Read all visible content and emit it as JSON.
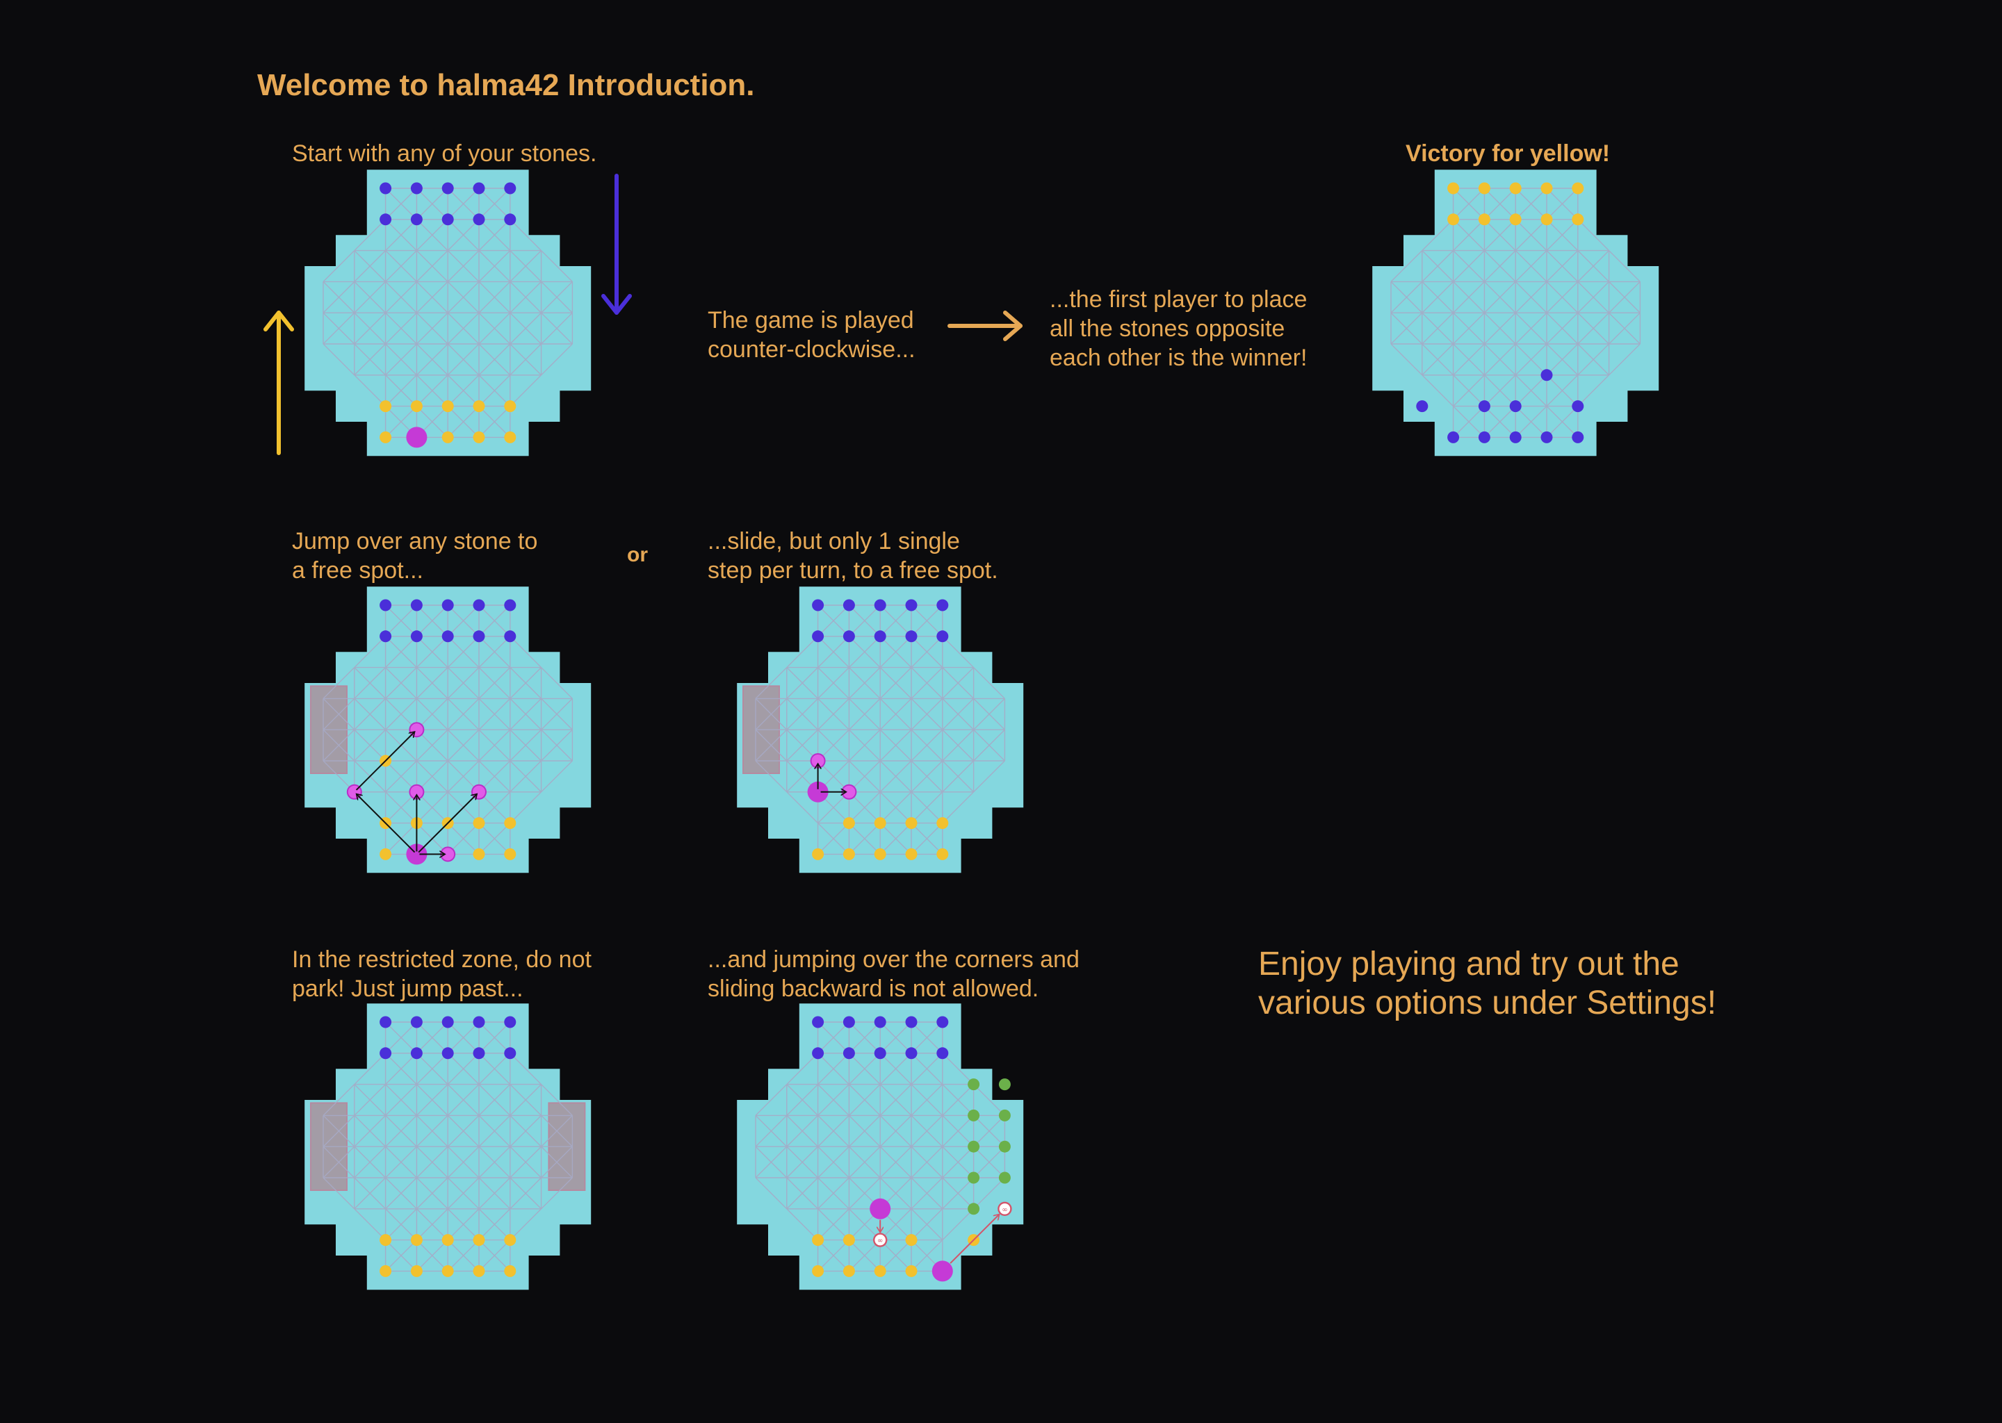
{
  "title": "Welcome to halma42 Introduction.",
  "captions": {
    "start": "Start with any of your stones.",
    "played_1": "The game is played",
    "played_2": "counter-clockwise...",
    "first_1": "...the first player to place",
    "first_2": "all the stones opposite",
    "first_3": "each other is the winner!",
    "victory": "Victory for yellow!",
    "jump_1": "Jump over any stone to",
    "jump_2": "a free spot...",
    "or": "or",
    "slide_1": "...slide, but only 1 single",
    "slide_2": "step per turn, to a free spot.",
    "restricted_1": "In the restricted zone, do not",
    "restricted_2": "park! Just jump past...",
    "corners_1": "...and jumping over the corners and",
    "corners_2": "sliding backward is not allowed.",
    "enjoy_1": "Enjoy playing and try out the",
    "enjoy_2": "various options under Settings!"
  },
  "colors": {
    "text": "#e6a855",
    "board": "#84d7df",
    "grid": "#a7aac6",
    "blue": "#4a2fd9",
    "yellow": "#f2c12e",
    "magenta": "#c53ad6",
    "green": "#6bb04a",
    "zone": "#a39ca6",
    "arrow_yellow": "#f2c12e",
    "arrow_blue": "#4a2fd9",
    "arrow_orange": "#e6a855"
  },
  "boards": [
    {
      "id": "start",
      "stones": [
        {
          "c": 2,
          "r": 0,
          "p": "blue"
        },
        {
          "c": 3,
          "r": 0,
          "p": "blue"
        },
        {
          "c": 4,
          "r": 0,
          "p": "blue"
        },
        {
          "c": 5,
          "r": 0,
          "p": "blue"
        },
        {
          "c": 6,
          "r": 0,
          "p": "blue"
        },
        {
          "c": 2,
          "r": 1,
          "p": "blue"
        },
        {
          "c": 3,
          "r": 1,
          "p": "blue"
        },
        {
          "c": 4,
          "r": 1,
          "p": "blue"
        },
        {
          "c": 5,
          "r": 1,
          "p": "blue"
        },
        {
          "c": 6,
          "r": 1,
          "p": "blue"
        },
        {
          "c": 2,
          "r": 7,
          "p": "yellow"
        },
        {
          "c": 3,
          "r": 7,
          "p": "yellow"
        },
        {
          "c": 4,
          "r": 7,
          "p": "yellow"
        },
        {
          "c": 5,
          "r": 7,
          "p": "yellow"
        },
        {
          "c": 6,
          "r": 7,
          "p": "yellow"
        },
        {
          "c": 2,
          "r": 8,
          "p": "yellow"
        },
        {
          "c": 3,
          "r": 8,
          "p": "magenta",
          "big": true
        },
        {
          "c": 4,
          "r": 8,
          "p": "yellow"
        },
        {
          "c": 5,
          "r": 8,
          "p": "yellow"
        },
        {
          "c": 6,
          "r": 8,
          "p": "yellow"
        }
      ]
    },
    {
      "id": "victory",
      "stones": [
        {
          "c": 2,
          "r": 0,
          "p": "yellow"
        },
        {
          "c": 3,
          "r": 0,
          "p": "yellow"
        },
        {
          "c": 4,
          "r": 0,
          "p": "yellow"
        },
        {
          "c": 5,
          "r": 0,
          "p": "yellow"
        },
        {
          "c": 6,
          "r": 0,
          "p": "yellow"
        },
        {
          "c": 2,
          "r": 1,
          "p": "yellow"
        },
        {
          "c": 3,
          "r": 1,
          "p": "yellow"
        },
        {
          "c": 4,
          "r": 1,
          "p": "yellow"
        },
        {
          "c": 5,
          "r": 1,
          "p": "yellow"
        },
        {
          "c": 6,
          "r": 1,
          "p": "yellow"
        },
        {
          "c": 5,
          "r": 6,
          "p": "blue"
        },
        {
          "c": 1,
          "r": 7,
          "p": "blue"
        },
        {
          "c": 3,
          "r": 7,
          "p": "blue"
        },
        {
          "c": 4,
          "r": 7,
          "p": "blue"
        },
        {
          "c": 6,
          "r": 7,
          "p": "blue"
        },
        {
          "c": 2,
          "r": 8,
          "p": "blue"
        },
        {
          "c": 3,
          "r": 8,
          "p": "blue"
        },
        {
          "c": 4,
          "r": 8,
          "p": "blue"
        },
        {
          "c": 5,
          "r": 8,
          "p": "blue"
        },
        {
          "c": 6,
          "r": 8,
          "p": "blue"
        }
      ]
    },
    {
      "id": "jump",
      "zones": [
        {
          "side": "left"
        }
      ],
      "stones": [
        {
          "c": 2,
          "r": 0,
          "p": "blue"
        },
        {
          "c": 3,
          "r": 0,
          "p": "blue"
        },
        {
          "c": 4,
          "r": 0,
          "p": "blue"
        },
        {
          "c": 5,
          "r": 0,
          "p": "blue"
        },
        {
          "c": 6,
          "r": 0,
          "p": "blue"
        },
        {
          "c": 2,
          "r": 1,
          "p": "blue"
        },
        {
          "c": 3,
          "r": 1,
          "p": "blue"
        },
        {
          "c": 4,
          "r": 1,
          "p": "blue"
        },
        {
          "c": 5,
          "r": 1,
          "p": "blue"
        },
        {
          "c": 6,
          "r": 1,
          "p": "blue"
        },
        {
          "c": 3,
          "r": 4,
          "p": "magenta",
          "ring": true
        },
        {
          "c": 2,
          "r": 5,
          "p": "yellow"
        },
        {
          "c": 1,
          "r": 6,
          "p": "magenta",
          "ring": true
        },
        {
          "c": 3,
          "r": 6,
          "p": "magenta",
          "ring": true
        },
        {
          "c": 5,
          "r": 6,
          "p": "magenta",
          "ring": true
        },
        {
          "c": 2,
          "r": 7,
          "p": "yellow"
        },
        {
          "c": 3,
          "r": 7,
          "p": "yellow"
        },
        {
          "c": 4,
          "r": 7,
          "p": "yellow"
        },
        {
          "c": 5,
          "r": 7,
          "p": "yellow"
        },
        {
          "c": 6,
          "r": 7,
          "p": "yellow"
        },
        {
          "c": 2,
          "r": 8,
          "p": "yellow"
        },
        {
          "c": 3,
          "r": 8,
          "p": "magenta",
          "big": true
        },
        {
          "c": 4,
          "r": 8,
          "p": "magenta",
          "ring": true
        },
        {
          "c": 5,
          "r": 8,
          "p": "yellow"
        },
        {
          "c": 6,
          "r": 8,
          "p": "yellow"
        }
      ],
      "arrows": [
        {
          "from": [
            3,
            8
          ],
          "to": [
            4,
            8
          ]
        },
        {
          "from": [
            3,
            8
          ],
          "to": [
            3,
            6
          ]
        },
        {
          "from": [
            3,
            8
          ],
          "to": [
            5,
            6
          ]
        },
        {
          "from": [
            3,
            8
          ],
          "to": [
            1,
            6
          ]
        },
        {
          "from": [
            1,
            6
          ],
          "to": [
            3,
            4
          ]
        }
      ]
    },
    {
      "id": "slide",
      "zones": [
        {
          "side": "left"
        }
      ],
      "stones": [
        {
          "c": 2,
          "r": 0,
          "p": "blue"
        },
        {
          "c": 3,
          "r": 0,
          "p": "blue"
        },
        {
          "c": 4,
          "r": 0,
          "p": "blue"
        },
        {
          "c": 5,
          "r": 0,
          "p": "blue"
        },
        {
          "c": 6,
          "r": 0,
          "p": "blue"
        },
        {
          "c": 2,
          "r": 1,
          "p": "blue"
        },
        {
          "c": 3,
          "r": 1,
          "p": "blue"
        },
        {
          "c": 4,
          "r": 1,
          "p": "blue"
        },
        {
          "c": 5,
          "r": 1,
          "p": "blue"
        },
        {
          "c": 6,
          "r": 1,
          "p": "blue"
        },
        {
          "c": 2,
          "r": 5,
          "p": "magenta",
          "ring": true
        },
        {
          "c": 2,
          "r": 6,
          "p": "magenta",
          "big": true
        },
        {
          "c": 3,
          "r": 6,
          "p": "magenta",
          "ring": true
        },
        {
          "c": 3,
          "r": 7,
          "p": "yellow"
        },
        {
          "c": 4,
          "r": 7,
          "p": "yellow"
        },
        {
          "c": 5,
          "r": 7,
          "p": "yellow"
        },
        {
          "c": 6,
          "r": 7,
          "p": "yellow"
        },
        {
          "c": 2,
          "r": 8,
          "p": "yellow"
        },
        {
          "c": 3,
          "r": 8,
          "p": "yellow"
        },
        {
          "c": 4,
          "r": 8,
          "p": "yellow"
        },
        {
          "c": 5,
          "r": 8,
          "p": "yellow"
        },
        {
          "c": 6,
          "r": 8,
          "p": "yellow"
        }
      ],
      "arrows": [
        {
          "from": [
            2,
            6
          ],
          "to": [
            2,
            5
          ]
        },
        {
          "from": [
            2,
            6
          ],
          "to": [
            3,
            6
          ]
        }
      ]
    },
    {
      "id": "restricted",
      "zones": [
        {
          "side": "left"
        },
        {
          "side": "right"
        }
      ],
      "stones": [
        {
          "c": 2,
          "r": 0,
          "p": "blue"
        },
        {
          "c": 3,
          "r": 0,
          "p": "blue"
        },
        {
          "c": 4,
          "r": 0,
          "p": "blue"
        },
        {
          "c": 5,
          "r": 0,
          "p": "blue"
        },
        {
          "c": 6,
          "r": 0,
          "p": "blue"
        },
        {
          "c": 2,
          "r": 1,
          "p": "blue"
        },
        {
          "c": 3,
          "r": 1,
          "p": "blue"
        },
        {
          "c": 4,
          "r": 1,
          "p": "blue"
        },
        {
          "c": 5,
          "r": 1,
          "p": "blue"
        },
        {
          "c": 6,
          "r": 1,
          "p": "blue"
        },
        {
          "c": 2,
          "r": 7,
          "p": "yellow"
        },
        {
          "c": 3,
          "r": 7,
          "p": "yellow"
        },
        {
          "c": 4,
          "r": 7,
          "p": "yellow"
        },
        {
          "c": 5,
          "r": 7,
          "p": "yellow"
        },
        {
          "c": 6,
          "r": 7,
          "p": "yellow"
        },
        {
          "c": 2,
          "r": 8,
          "p": "yellow"
        },
        {
          "c": 3,
          "r": 8,
          "p": "yellow"
        },
        {
          "c": 4,
          "r": 8,
          "p": "yellow"
        },
        {
          "c": 5,
          "r": 8,
          "p": "yellow"
        },
        {
          "c": 6,
          "r": 8,
          "p": "yellow"
        }
      ]
    },
    {
      "id": "corners",
      "stones": [
        {
          "c": 2,
          "r": 0,
          "p": "blue"
        },
        {
          "c": 3,
          "r": 0,
          "p": "blue"
        },
        {
          "c": 4,
          "r": 0,
          "p": "blue"
        },
        {
          "c": 5,
          "r": 0,
          "p": "blue"
        },
        {
          "c": 6,
          "r": 0,
          "p": "blue"
        },
        {
          "c": 2,
          "r": 1,
          "p": "blue"
        },
        {
          "c": 3,
          "r": 1,
          "p": "blue"
        },
        {
          "c": 4,
          "r": 1,
          "p": "blue"
        },
        {
          "c": 5,
          "r": 1,
          "p": "blue"
        },
        {
          "c": 6,
          "r": 1,
          "p": "blue"
        },
        {
          "c": 7,
          "r": 2,
          "p": "green"
        },
        {
          "c": 8,
          "r": 2,
          "p": "green"
        },
        {
          "c": 7,
          "r": 3,
          "p": "green"
        },
        {
          "c": 8,
          "r": 3,
          "p": "green"
        },
        {
          "c": 7,
          "r": 4,
          "p": "green"
        },
        {
          "c": 8,
          "r": 4,
          "p": "green"
        },
        {
          "c": 7,
          "r": 5,
          "p": "green"
        },
        {
          "c": 8,
          "r": 5,
          "p": "green"
        },
        {
          "c": 7,
          "r": 6,
          "p": "green"
        },
        {
          "c": 4,
          "r": 6,
          "p": "magenta",
          "big": true
        },
        {
          "c": 8,
          "r": 6,
          "p": "forbidden"
        },
        {
          "c": 4,
          "r": 7,
          "p": "forbidden"
        },
        {
          "c": 2,
          "r": 7,
          "p": "yellow"
        },
        {
          "c": 3,
          "r": 7,
          "p": "yellow"
        },
        {
          "c": 5,
          "r": 7,
          "p": "yellow"
        },
        {
          "c": 7,
          "r": 7,
          "p": "yellow"
        },
        {
          "c": 2,
          "r": 8,
          "p": "yellow"
        },
        {
          "c": 3,
          "r": 8,
          "p": "yellow"
        },
        {
          "c": 4,
          "r": 8,
          "p": "yellow"
        },
        {
          "c": 5,
          "r": 8,
          "p": "yellow"
        },
        {
          "c": 6,
          "r": 8,
          "p": "magenta",
          "big": true
        }
      ],
      "arrows": [
        {
          "from": [
            4,
            6
          ],
          "to": [
            4,
            7
          ],
          "red": true
        },
        {
          "from": [
            6,
            8
          ],
          "to": [
            8,
            6
          ],
          "red": true
        }
      ]
    }
  ]
}
